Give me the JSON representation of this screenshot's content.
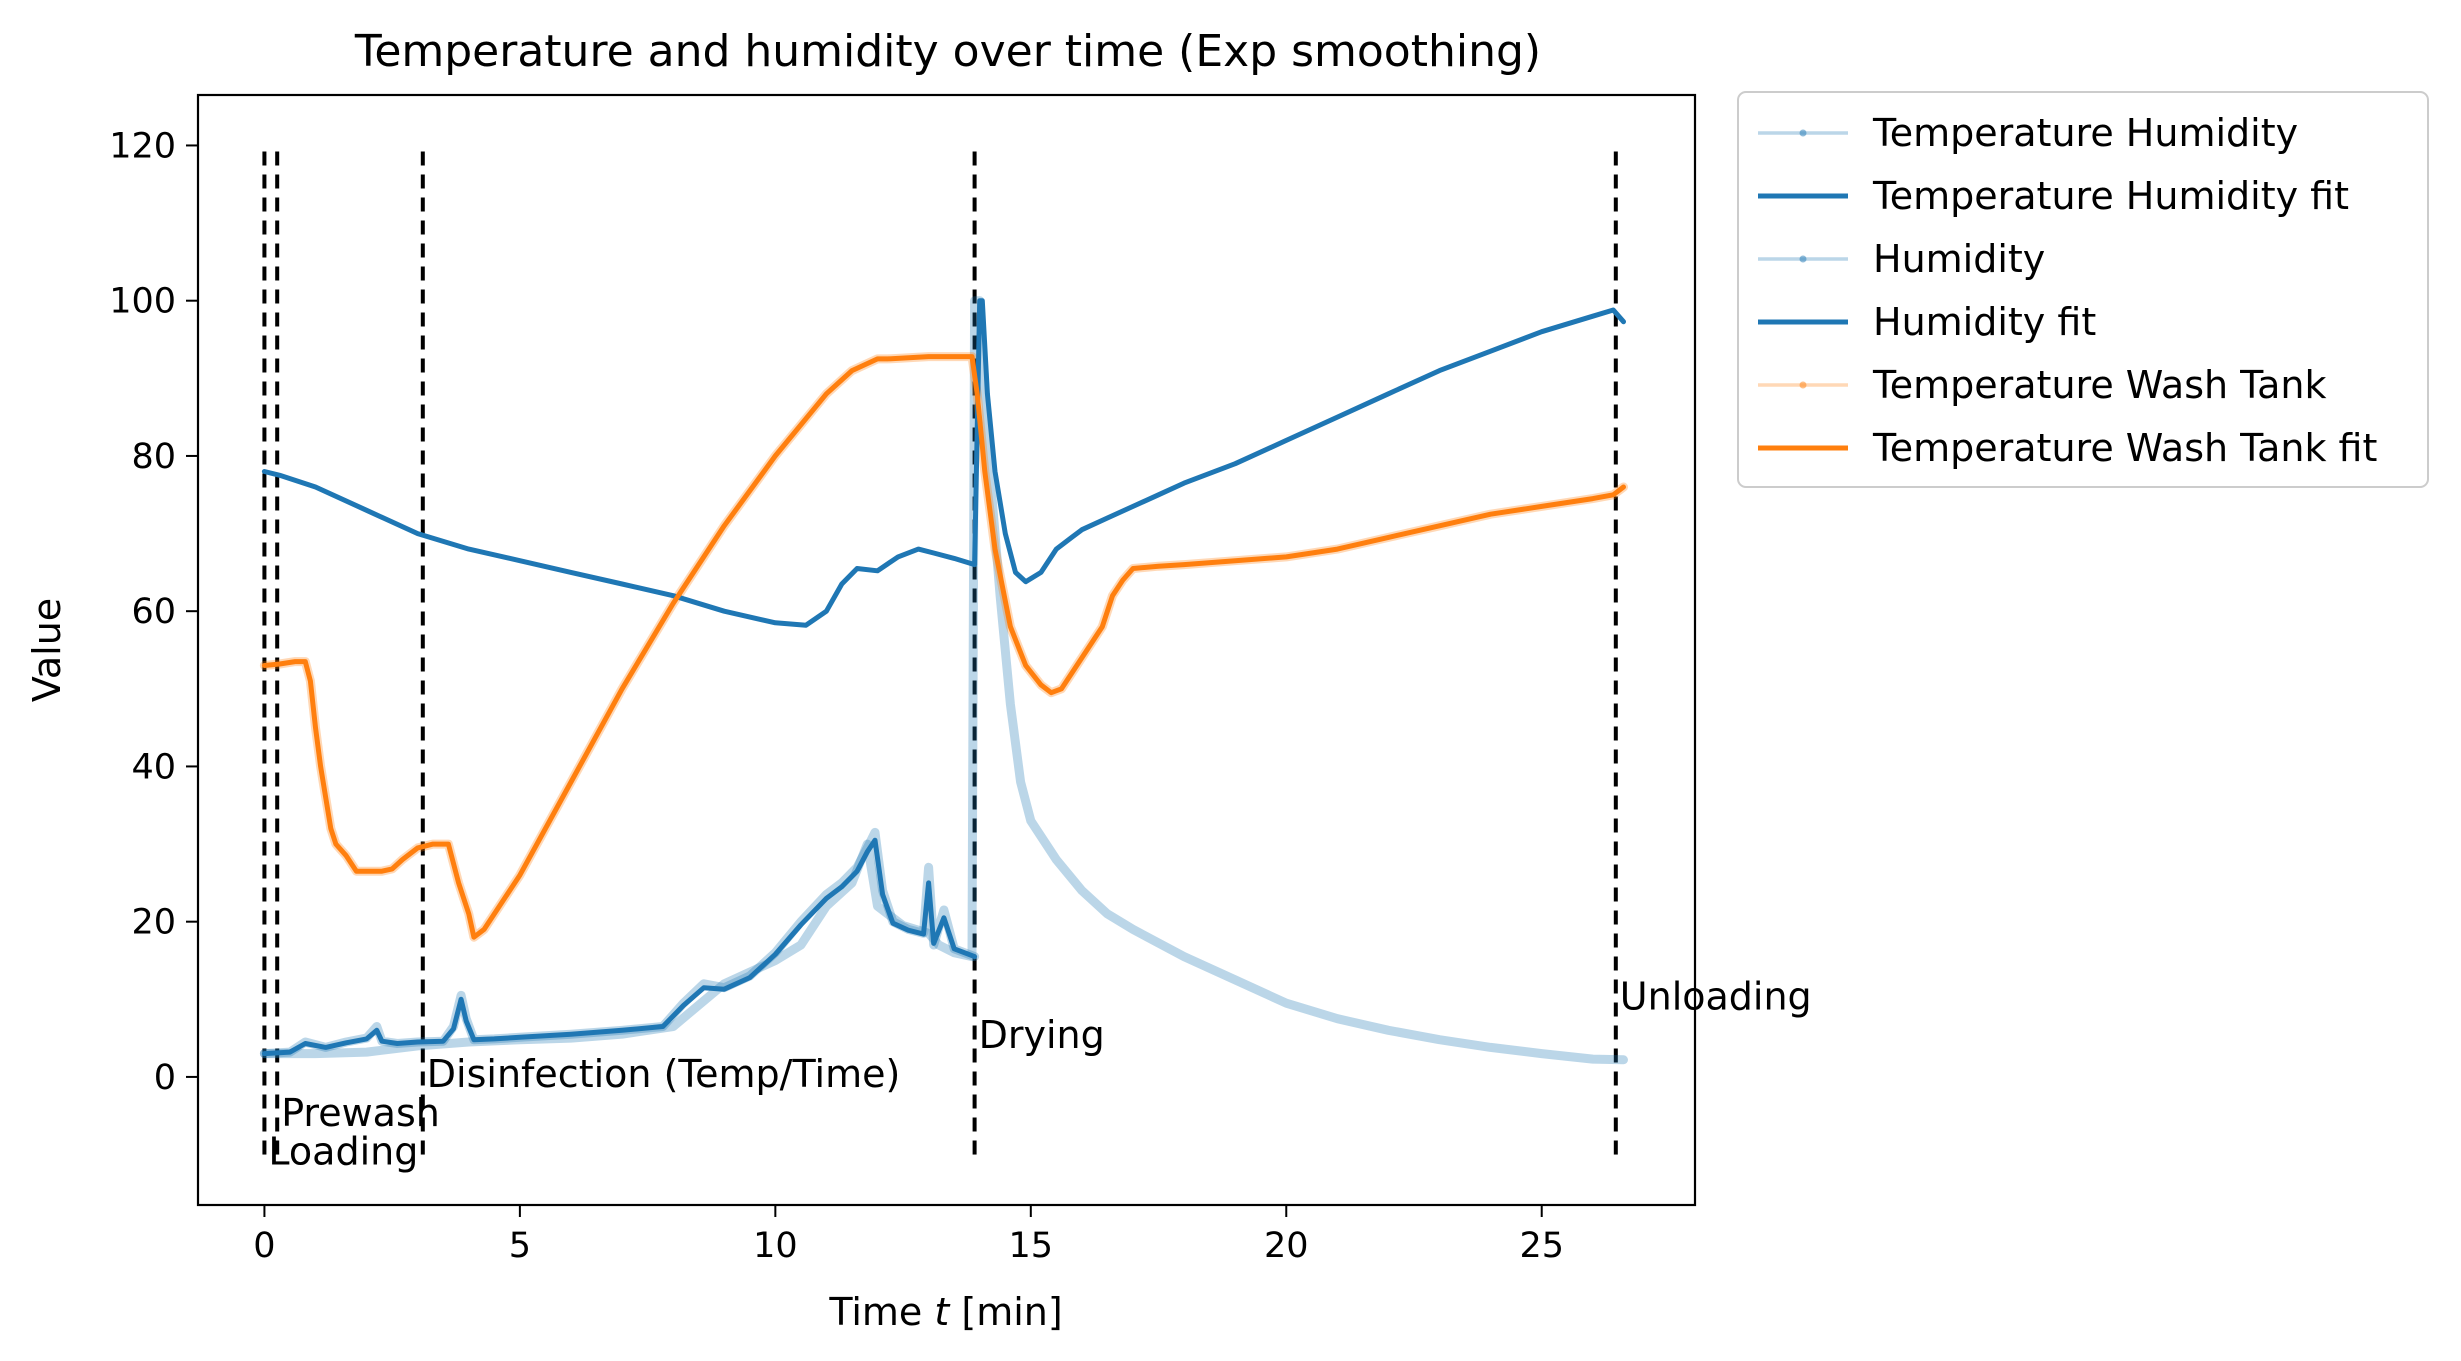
{
  "chart_data": {
    "type": "line",
    "title": "Temperature and humidity over time (Exp smoothing)",
    "xlabel_prefix": "Time ",
    "xlabel_var": "t",
    "xlabel_suffix": " [min]",
    "ylabel": "Value",
    "xlim": [
      -1.3,
      28.0
    ],
    "ylim": [
      -16.5,
      126.5
    ],
    "xticks": [
      0,
      5,
      10,
      15,
      20,
      25
    ],
    "yticks": [
      0,
      20,
      40,
      60,
      80,
      100,
      120
    ],
    "grid": false,
    "legend_position": "outside-right-top",
    "phases": [
      {
        "name": "Loading",
        "x": 0.0,
        "label_y": -9.5
      },
      {
        "name": "Prewash",
        "x": 0.25,
        "label_y": -4.5
      },
      {
        "name": "Disinfection (Temp/Time)",
        "x": 3.1,
        "label_y": 0.5
      },
      {
        "name": "Drying",
        "x": 13.9,
        "label_y": 5.5
      },
      {
        "name": "Unloading",
        "x": 26.45,
        "label_y": 10.5
      }
    ],
    "phase_line_range": [
      -10,
      120
    ],
    "series": [
      {
        "name": "Temperature Humidity",
        "color": "#1f77b4",
        "role": "raw",
        "x": [
          0,
          0.5,
          0.8,
          1.2,
          1.6,
          2.0,
          2.2,
          2.3,
          2.6,
          3.0,
          3.5,
          3.7,
          3.85,
          3.95,
          4.1,
          4.5,
          5.0,
          6.0,
          7.0,
          7.8,
          8.2,
          8.6,
          9.0,
          9.5,
          10.0,
          10.5,
          11.0,
          11.3,
          11.6,
          11.8,
          11.95,
          12.1,
          12.3,
          12.6,
          12.9,
          13.0,
          13.1,
          13.3,
          13.5,
          13.9
        ],
        "y": [
          3.0,
          3.2,
          4.5,
          3.8,
          4.5,
          5.0,
          6.5,
          4.6,
          4.3,
          4.5,
          4.6,
          6.5,
          10.5,
          7.5,
          4.8,
          4.9,
          5.1,
          5.5,
          6.0,
          6.5,
          9.5,
          12.0,
          11.5,
          13.0,
          16.0,
          20.0,
          23.5,
          25.0,
          27.0,
          29.5,
          31.5,
          24.0,
          20.0,
          19.0,
          18.5,
          27.0,
          17.0,
          21.5,
          16.5,
          15.5
        ]
      },
      {
        "name": "Temperature Humidity fit",
        "color": "#1f77b4",
        "role": "fit",
        "x": [
          0,
          0.5,
          0.8,
          1.2,
          1.6,
          2.0,
          2.2,
          2.3,
          2.6,
          3.0,
          3.5,
          3.7,
          3.85,
          3.95,
          4.1,
          4.5,
          5.0,
          6.0,
          7.0,
          7.8,
          8.2,
          8.6,
          9.0,
          9.5,
          10.0,
          10.5,
          11.0,
          11.3,
          11.6,
          11.8,
          11.95,
          12.1,
          12.3,
          12.6,
          12.9,
          13.0,
          13.1,
          13.3,
          13.5,
          13.9
        ],
        "y": [
          3.0,
          3.2,
          4.3,
          3.8,
          4.4,
          4.9,
          6.0,
          4.6,
          4.3,
          4.5,
          4.6,
          6.2,
          10.0,
          7.2,
          4.8,
          4.9,
          5.1,
          5.5,
          6.0,
          6.5,
          9.2,
          11.5,
          11.3,
          12.8,
          15.8,
          19.6,
          23.0,
          24.5,
          26.5,
          29.0,
          30.5,
          23.5,
          19.8,
          18.9,
          18.4,
          25.0,
          17.2,
          20.5,
          16.5,
          15.5
        ]
      },
      {
        "name": "Humidity",
        "color": "#1f77b4",
        "role": "raw",
        "x": [
          0,
          0.5,
          1.0,
          2.0,
          3.0,
          4.0,
          5.0,
          6.0,
          7.0,
          8.0,
          9.0,
          10.0,
          10.5,
          11.0,
          11.5,
          11.8,
          12.0,
          12.5,
          13.0,
          13.2,
          13.5,
          13.85,
          13.9,
          14.0,
          14.2,
          14.4,
          14.6,
          14.8,
          15.0,
          15.5,
          16.0,
          16.5,
          17.0,
          18.0,
          19.0,
          20.0,
          21.0,
          22.0,
          23.0,
          24.0,
          25.0,
          26.0,
          26.6
        ],
        "y": [
          3,
          3,
          3,
          3.2,
          4,
          4.5,
          4.8,
          5,
          5.5,
          6.5,
          12,
          15,
          17,
          22,
          25,
          30,
          22,
          19.5,
          18.5,
          17,
          16,
          15.5,
          100,
          100,
          78,
          62,
          48,
          38,
          33,
          28,
          24,
          21,
          19,
          15.5,
          12.5,
          9.5,
          7.5,
          6,
          4.8,
          3.8,
          3,
          2.3,
          2.2
        ]
      },
      {
        "name": "Humidity fit",
        "color": "#1f77b4",
        "role": "fit",
        "x": [
          0,
          0.3,
          1.0,
          2.0,
          3.0,
          4.0,
          5.0,
          6.0,
          7.0,
          8.0,
          9.0,
          10.0,
          10.6,
          11.0,
          11.3,
          11.6,
          12.0,
          12.4,
          12.8,
          13.1,
          13.5,
          13.9,
          14.0,
          14.05,
          14.15,
          14.3,
          14.5,
          14.7,
          14.9,
          15.2,
          15.5,
          15.8,
          16.0,
          16.5,
          17.0,
          17.5,
          18.0,
          19.0,
          20.0,
          21.0,
          22.0,
          23.0,
          24.0,
          25.0,
          26.0,
          26.4,
          26.6
        ],
        "y": [
          78,
          77.5,
          76,
          73,
          70,
          68,
          66.5,
          65,
          63.5,
          62,
          60,
          58.5,
          58.2,
          60,
          63.5,
          65.5,
          65.2,
          67,
          68,
          67.5,
          66.8,
          66,
          100,
          100,
          88,
          78,
          70,
          65,
          63.8,
          65,
          68,
          69.5,
          70.5,
          72,
          73.5,
          75,
          76.5,
          79,
          82,
          85,
          88,
          91,
          93.5,
          96,
          98,
          98.8,
          97.3
        ]
      },
      {
        "name": "Temperature Wash Tank",
        "color": "#ff7f0e",
        "role": "raw",
        "x": [
          0,
          0.3,
          0.6,
          0.8,
          0.9,
          1.0,
          1.1,
          1.2,
          1.3,
          1.4,
          1.6,
          1.8,
          2.0,
          2.3,
          2.5,
          2.7,
          3.0,
          3.3,
          3.6,
          3.8,
          4.0,
          4.1,
          4.3,
          5.0,
          6.0,
          7.0,
          8.0,
          9.0,
          10.0,
          11.0,
          11.5,
          12.0,
          12.2,
          13.0,
          13.85,
          13.95,
          14.1,
          14.3,
          14.6,
          14.9,
          15.2,
          15.4,
          15.6,
          15.9,
          16.2,
          16.4,
          16.6,
          16.8,
          17.0,
          17.5,
          18.0,
          19.0,
          20.0,
          21.0,
          22.0,
          23.0,
          24.0,
          25.0,
          26.0,
          26.4,
          26.6
        ],
        "y": [
          53,
          53.2,
          53.5,
          53.5,
          51,
          45,
          40,
          36,
          32,
          30,
          28.5,
          26.5,
          26.5,
          26.5,
          26.8,
          28,
          29.5,
          30,
          30,
          25,
          21,
          18,
          19,
          26,
          38,
          50,
          61,
          71,
          80,
          88,
          91,
          92.5,
          92.5,
          92.8,
          92.8,
          88,
          78,
          68,
          58,
          53,
          50.5,
          49.5,
          50,
          53,
          56,
          58,
          62,
          64,
          65.5,
          65.8,
          66,
          66.5,
          67,
          68,
          69.5,
          71,
          72.5,
          73.5,
          74.5,
          75,
          76
        ]
      },
      {
        "name": "Temperature Wash Tank fit",
        "color": "#ff7f0e",
        "role": "fit",
        "x": [
          0,
          0.3,
          0.6,
          0.8,
          0.9,
          1.0,
          1.1,
          1.2,
          1.3,
          1.4,
          1.6,
          1.8,
          2.0,
          2.3,
          2.5,
          2.7,
          3.0,
          3.3,
          3.6,
          3.8,
          4.0,
          4.1,
          4.3,
          5.0,
          6.0,
          7.0,
          8.0,
          9.0,
          10.0,
          11.0,
          11.5,
          12.0,
          12.2,
          13.0,
          13.85,
          13.95,
          14.1,
          14.3,
          14.6,
          14.9,
          15.2,
          15.4,
          15.6,
          15.9,
          16.2,
          16.4,
          16.6,
          16.8,
          17.0,
          17.5,
          18.0,
          19.0,
          20.0,
          21.0,
          22.0,
          23.0,
          24.0,
          25.0,
          26.0,
          26.4,
          26.6
        ],
        "y": [
          53,
          53.2,
          53.5,
          53.5,
          51,
          45,
          40,
          36,
          32,
          30,
          28.5,
          26.5,
          26.5,
          26.5,
          26.8,
          28,
          29.5,
          30,
          30,
          25,
          21,
          18,
          19,
          26,
          38,
          50,
          61,
          71,
          80,
          88,
          91,
          92.5,
          92.5,
          92.8,
          92.8,
          88,
          78,
          68,
          58,
          53,
          50.5,
          49.5,
          50,
          53,
          56,
          58,
          62,
          64,
          65.5,
          65.8,
          66,
          66.5,
          67,
          68,
          69.5,
          71,
          72.5,
          73.5,
          74.5,
          75,
          76
        ]
      }
    ]
  }
}
